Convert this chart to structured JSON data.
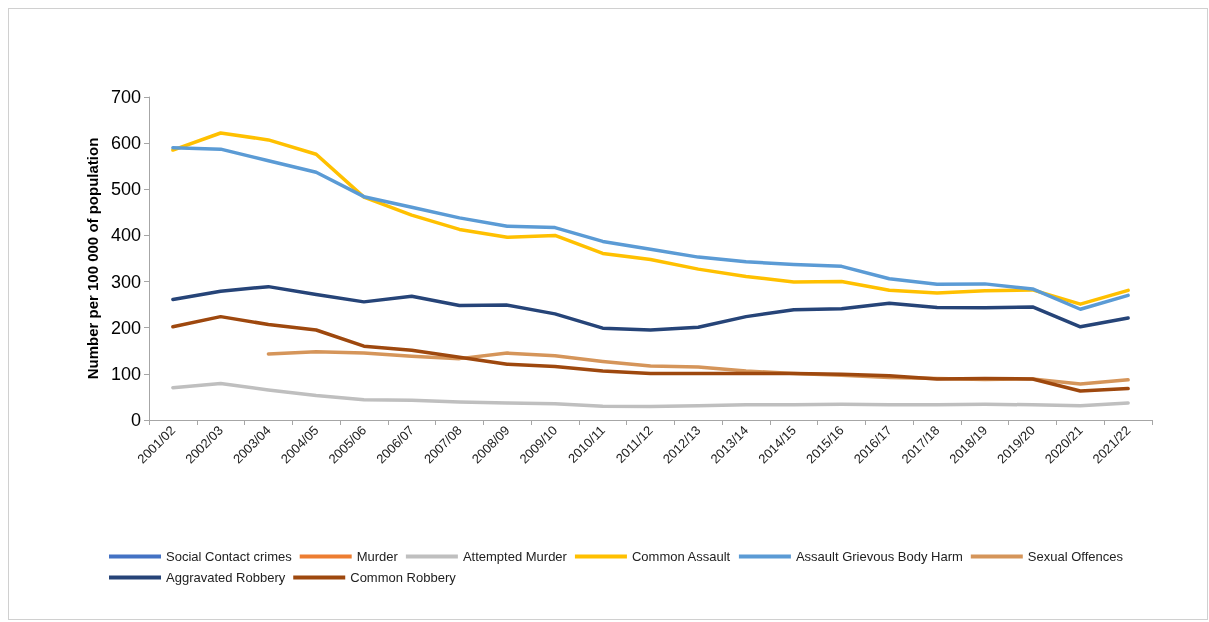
{
  "chart_data": {
    "type": "line",
    "ylabel": "Number per 100 000 of population",
    "categories": [
      "2001/02",
      "2002/03",
      "2003/04",
      "2004/05",
      "2005/06",
      "2006/07",
      "2007/08",
      "2008/09",
      "2009/10",
      "2010/11",
      "2011/12",
      "2012/13",
      "2013/14",
      "2014/15",
      "2015/16",
      "2016/17",
      "2017/18",
      "2018/19",
      "2019/20",
      "2020/21",
      "2021/22"
    ],
    "series": [
      {
        "name": "Social Contact crimes",
        "color": "#4472c4",
        "values": [
          null,
          null,
          null,
          null,
          null,
          null,
          null,
          null,
          null,
          null,
          null,
          null,
          null,
          null,
          null,
          null,
          null,
          null,
          null,
          null,
          null
        ]
      },
      {
        "name": "Murder",
        "color": "#ed7d31",
        "values": [
          null,
          null,
          null,
          null,
          null,
          null,
          null,
          null,
          null,
          null,
          null,
          null,
          null,
          null,
          null,
          null,
          null,
          null,
          null,
          null,
          null
        ]
      },
      {
        "name": "Attempted Murder",
        "color": "#bfbfbf",
        "values": [
          70,
          79,
          65,
          53,
          44,
          43,
          39,
          37,
          35,
          30,
          29,
          31,
          33,
          33,
          34,
          33,
          33,
          34,
          33,
          31,
          37
        ]
      },
      {
        "name": "Common Assault",
        "color": "#ffc000",
        "values": [
          585,
          622,
          607,
          576,
          483,
          444,
          413,
          396,
          400,
          361,
          348,
          327,
          311,
          299,
          300,
          281,
          275,
          280,
          282,
          251,
          281
        ]
      },
      {
        "name": "Assault Grievous Body Harm",
        "color": "#5b9bd5",
        "values": [
          590,
          587,
          562,
          537,
          484,
          461,
          438,
          420,
          417,
          387,
          370,
          353,
          343,
          337,
          333,
          306,
          294,
          295,
          284,
          240,
          270
        ]
      },
      {
        "name": "Sexual Offences",
        "color": "#d5955a",
        "values": [
          null,
          null,
          143,
          148,
          145,
          138,
          133,
          145,
          139,
          127,
          117,
          115,
          106,
          101,
          97,
          92,
          90,
          88,
          89,
          78,
          87
        ]
      },
      {
        "name": "Aggravated Robbery",
        "color": "#264478",
        "values": [
          261,
          279,
          289,
          272,
          256,
          268,
          248,
          249,
          230,
          199,
          195,
          201,
          224,
          239,
          241,
          253,
          244,
          243,
          245,
          202,
          221
        ]
      },
      {
        "name": "Common Robbery",
        "color": "#9e480e",
        "values": [
          202,
          224,
          207,
          195,
          160,
          151,
          136,
          121,
          116,
          106,
          101,
          101,
          101,
          101,
          99,
          96,
          89,
          90,
          89,
          63,
          68
        ]
      }
    ],
    "ylim": [
      0,
      700
    ],
    "yticks": [
      0,
      100,
      200,
      300,
      400,
      500,
      600,
      700
    ],
    "grid": false,
    "legend": "bottom",
    "marker": "none",
    "line_style": "solid"
  }
}
